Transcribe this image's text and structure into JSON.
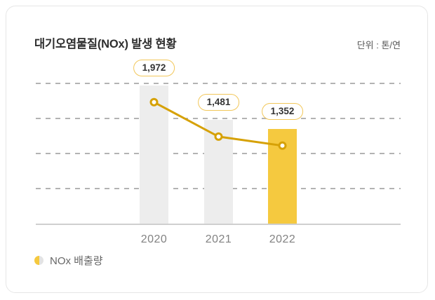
{
  "chart": {
    "title": "대기오염물질(NOx) 발생 현황",
    "unit_label": "단위 : 톤/연",
    "legend_label": "NOx 배출량"
  },
  "chart_data": {
    "type": "bar",
    "overlay": "line",
    "title": "대기오염물질(NOx) 발생 현황",
    "unit": "톤/연",
    "categories": [
      "2020",
      "2021",
      "2022"
    ],
    "values": [
      1972,
      1481,
      1352
    ],
    "value_labels": [
      "1,972",
      "1,481",
      "1,352"
    ],
    "series": [
      {
        "name": "NOx 배출량",
        "values": [
          1972,
          1481,
          1352
        ]
      }
    ],
    "ylim": [
      0,
      2000
    ],
    "gridlines": [
      500,
      1000,
      1500,
      2000
    ],
    "grid": "dashed horizontal, no y tick labels",
    "legend": [
      "NOx 배출량"
    ],
    "legend_position": "bottom-left",
    "bar_colors": [
      "#EDEDED",
      "#EDEDED",
      "#F5C93F"
    ]
  },
  "colors": {
    "accent_yellow": "#F5C93F",
    "bar_gray": "#EDEDED",
    "line_gold": "#D6A106",
    "pill_border": "#F2C75A",
    "pill_text": "#333333",
    "grid": "#B3B3B3",
    "axis": "#CFCFCF",
    "title_text": "#2E2E2E",
    "unit_text": "#555555",
    "axis_label_text": "#828282",
    "muted_text": "#666666",
    "legend_gray": "#E3E3E3",
    "card_border": "#E6E6E6"
  }
}
